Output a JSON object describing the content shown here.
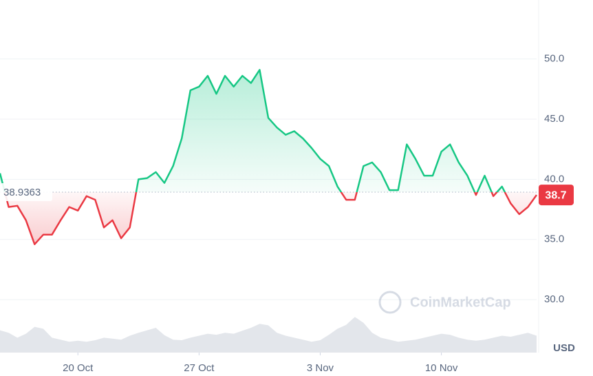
{
  "chart_data": {
    "type": "line",
    "values": [
      40.5,
      37.7,
      37.8,
      36.6,
      34.6,
      35.4,
      35.4,
      36.6,
      37.7,
      37.4,
      38.6,
      38.3,
      36.0,
      36.6,
      35.1,
      36.0,
      40.0,
      40.1,
      40.6,
      39.7,
      41.1,
      43.4,
      47.4,
      47.7,
      48.6,
      47.1,
      48.6,
      47.7,
      48.6,
      48.0,
      49.1,
      45.1,
      44.3,
      43.7,
      44.0,
      43.4,
      42.6,
      41.7,
      41.1,
      39.4,
      38.3,
      38.3,
      41.1,
      41.4,
      40.6,
      39.1,
      39.1,
      42.9,
      41.7,
      40.3,
      40.3,
      42.3,
      42.9,
      41.4,
      40.3,
      38.7,
      40.3,
      38.6,
      39.4,
      38.0,
      37.1,
      37.7,
      38.7
    ],
    "up_color": "#16c784",
    "down_color": "#ea3943",
    "baseline": 38.9363,
    "xlim": [
      0,
      62
    ],
    "xticks": [
      {
        "value": 9,
        "label": "20 Oct"
      },
      {
        "value": 23,
        "label": "27 Oct"
      },
      {
        "value": 37,
        "label": "3 Nov"
      },
      {
        "value": 51,
        "label": "10 Nov"
      }
    ],
    "ylim": [
      25.6,
      54.9
    ],
    "yticks": [
      {
        "value": 30,
        "label": "30.0"
      },
      {
        "value": 35,
        "label": "35.0"
      },
      {
        "value": 40,
        "label": "40.0"
      },
      {
        "value": 45,
        "label": "45.0"
      },
      {
        "value": 50,
        "label": "50.0"
      }
    ],
    "grid": true,
    "currency": "USD",
    "watermark": "CoinMarketCap",
    "volume": {
      "values": [
        45,
        40,
        30,
        38,
        52,
        48,
        30,
        26,
        22,
        24,
        22,
        25,
        30,
        28,
        26,
        34,
        40,
        45,
        50,
        35,
        26,
        25,
        30,
        34,
        38,
        36,
        40,
        38,
        44,
        50,
        58,
        55,
        40,
        34,
        30,
        26,
        22,
        25,
        36,
        48,
        56,
        72,
        60,
        40,
        30,
        26,
        22,
        24,
        26,
        30,
        34,
        38,
        36,
        30,
        26,
        24,
        26,
        30,
        34,
        32,
        36,
        40,
        34
      ],
      "ylim": [
        0,
        100
      ],
      "color": "#e3e6eb"
    }
  }
}
